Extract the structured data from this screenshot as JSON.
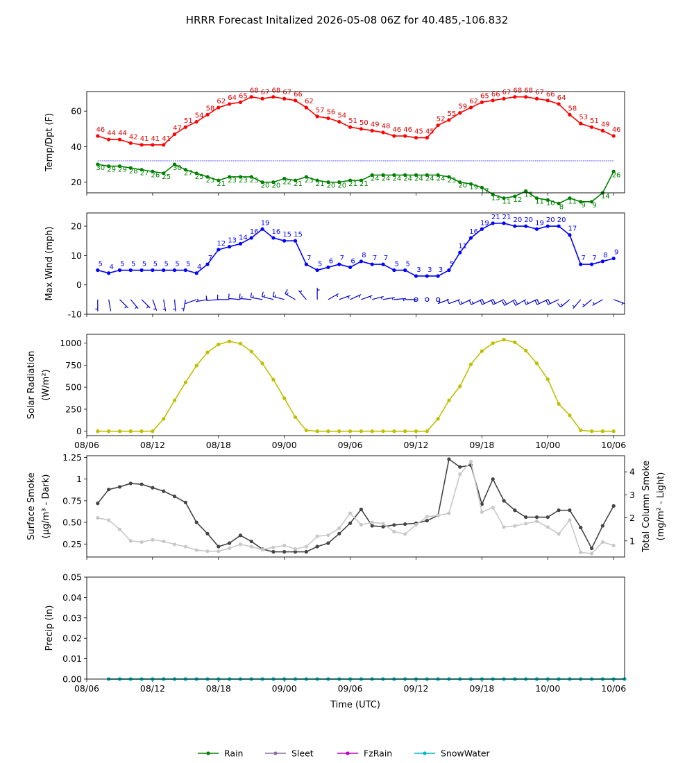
{
  "title": "HRRR Forecast Initalized 2026-05-08 06Z for 40.485,-106.832",
  "xlabel": "Time (UTC)",
  "x_tick_labels": [
    "08/06",
    "08/12",
    "08/18",
    "09/00",
    "09/06",
    "09/12",
    "09/18",
    "10/00",
    "10/06"
  ],
  "x_tick_hours": [
    0,
    6,
    12,
    18,
    24,
    30,
    36,
    42,
    48
  ],
  "x_range_hours": [
    0,
    49
  ],
  "legend": [
    {
      "name": "Rain",
      "color": "#008000"
    },
    {
      "name": "Sleet",
      "color": "#8a6fa0"
    },
    {
      "name": "FzRain",
      "color": "#c000c0"
    },
    {
      "name": "SnowWater",
      "color": "#00b8c8"
    }
  ],
  "chart_data": [
    {
      "type": "line",
      "ylabel": "Temp/Dpt (F)",
      "ylim": [
        14,
        71
      ],
      "yticks": [
        20,
        40,
        60
      ],
      "reference_line": 32,
      "hours_start": 1,
      "series": [
        {
          "key": "temp",
          "color": "#ff0000",
          "label_color": "#dd0000",
          "values": [
            46,
            44,
            44,
            42,
            41,
            41,
            41,
            47,
            51,
            54,
            58,
            62,
            64,
            65,
            68,
            67,
            68,
            67,
            66,
            62,
            57,
            56,
            54,
            51,
            50,
            49,
            48,
            46,
            46,
            45,
            45,
            52,
            55,
            59,
            62,
            65,
            66,
            67,
            68,
            68,
            67,
            66,
            64,
            58,
            53,
            51,
            49,
            46
          ]
        },
        {
          "key": "dewpoint",
          "color": "#008000",
          "label_color": "#008000",
          "values": [
            30,
            29,
            29,
            28,
            27,
            26,
            25,
            30,
            27,
            25,
            23,
            21,
            23,
            23,
            23,
            20,
            20,
            22,
            21,
            23,
            21,
            20,
            20,
            21,
            21,
            24,
            24,
            24,
            24,
            24,
            24,
            24,
            23,
            20,
            19,
            17,
            13,
            11,
            12,
            15,
            11,
            10,
            8,
            11,
            9,
            9,
            14,
            26
          ]
        }
      ]
    },
    {
      "type": "line",
      "ylabel": "Max Wind (mph)",
      "ylim": [
        -10,
        24.5
      ],
      "yticks": [
        -10,
        0,
        10,
        20
      ],
      "hours_start": 1,
      "series": [
        {
          "key": "wind",
          "color": "#0000ff",
          "values": [
            5,
            4,
            5,
            5,
            5,
            5,
            5,
            5,
            5,
            4,
            7,
            12,
            13,
            14,
            16,
            19,
            16,
            15,
            15,
            7,
            5,
            6,
            7,
            6,
            8,
            7,
            7,
            5,
            5,
            3,
            3,
            3,
            5,
            11,
            16,
            19,
            21,
            21,
            20,
            20,
            19,
            20,
            20,
            17,
            7,
            7,
            8,
            9
          ]
        }
      ],
      "barbs": {
        "y": -5,
        "directions_deg": [
          180,
          170,
          135,
          140,
          135,
          160,
          170,
          175,
          190,
          250,
          260,
          265,
          270,
          275,
          275,
          280,
          285,
          285,
          300,
          320,
          0,
          60,
          70,
          65,
          70,
          75,
          80,
          85,
          90,
          95,
          120,
          135,
          250,
          250,
          245,
          245,
          245,
          245,
          240,
          240,
          245,
          245,
          245,
          230,
          220,
          230,
          240,
          110
        ]
      }
    },
    {
      "type": "line",
      "ylabel": "Solar Radiation",
      "ylabel_unit": "(W/m²)",
      "ylim": [
        -50,
        1100
      ],
      "yticks": [
        0,
        250,
        500,
        750,
        1000
      ],
      "hours_start": 1,
      "series": [
        {
          "key": "solar",
          "color": "#bfbf00",
          "values": [
            0,
            0,
            0,
            0,
            0,
            0,
            140,
            350,
            555,
            745,
            895,
            985,
            1020,
            995,
            905,
            770,
            585,
            375,
            160,
            10,
            0,
            0,
            0,
            0,
            0,
            0,
            0,
            0,
            0,
            0,
            0,
            140,
            350,
            510,
            760,
            910,
            1000,
            1040,
            1010,
            915,
            770,
            590,
            310,
            180,
            10,
            0,
            0,
            0
          ]
        }
      ]
    },
    {
      "type": "line",
      "ylabel": "Surface Smoke",
      "ylabel_unit": "(μg/m³ - Dark)",
      "ylabel_right": "Total Column Smoke",
      "ylabel_right_unit": "(mg/m² - Light)",
      "ylim": [
        0.1,
        1.27
      ],
      "yticks": [
        0.25,
        0.5,
        0.75,
        1.0,
        1.25
      ],
      "ylim_right": [
        0.3,
        4.7
      ],
      "yticks_right": [
        1,
        2,
        3,
        4
      ],
      "hours_start": 1,
      "series": [
        {
          "key": "surface_smoke",
          "color": "#444444",
          "axis": "left",
          "values": [
            0.72,
            0.88,
            0.91,
            0.95,
            0.94,
            0.9,
            0.86,
            0.8,
            0.73,
            0.5,
            0.37,
            0.22,
            0.26,
            0.35,
            0.28,
            0.19,
            0.16,
            0.16,
            0.16,
            0.16,
            0.22,
            0.26,
            0.37,
            0.49,
            0.65,
            0.46,
            0.45,
            0.47,
            0.48,
            0.49,
            0.52,
            0.58,
            1.23,
            1.14,
            1.16,
            0.71,
            1.0,
            0.75,
            0.64,
            0.56,
            0.56,
            0.56,
            0.64,
            0.64,
            0.44,
            0.2,
            0.46,
            0.69
          ]
        },
        {
          "key": "column_smoke",
          "color": "#c8c8c8",
          "axis": "right",
          "values": [
            2.0,
            1.9,
            1.5,
            1.0,
            0.95,
            1.05,
            0.98,
            0.85,
            0.75,
            0.6,
            0.55,
            0.55,
            0.68,
            0.85,
            0.75,
            0.62,
            0.72,
            0.8,
            0.65,
            0.75,
            1.2,
            1.25,
            1.55,
            2.2,
            1.7,
            1.8,
            1.75,
            1.4,
            1.3,
            1.7,
            2.05,
            2.1,
            2.2,
            3.9,
            4.45,
            2.25,
            2.45,
            1.6,
            1.65,
            1.75,
            1.85,
            1.6,
            1.3,
            1.9,
            0.5,
            0.45,
            0.95,
            0.8
          ]
        }
      ]
    },
    {
      "type": "line",
      "ylabel": "Precip (in)",
      "ylim": [
        0,
        0.05
      ],
      "yticks": [
        0.0,
        0.01,
        0.02,
        0.03,
        0.04,
        0.05
      ],
      "ytick_labels": [
        "0.00",
        "0.01",
        "0.02",
        "0.03",
        "0.04",
        "0.05"
      ],
      "hours_start": 2,
      "series": [
        {
          "key": "rain",
          "color": "#008000",
          "values": [
            0,
            0,
            0,
            0,
            0,
            0,
            0,
            0,
            0,
            0,
            0,
            0,
            0,
            0,
            0,
            0,
            0,
            0,
            0,
            0,
            0,
            0,
            0,
            0,
            0,
            0,
            0,
            0,
            0,
            0,
            0,
            0,
            0,
            0,
            0,
            0,
            0,
            0,
            0,
            0,
            0,
            0,
            0,
            0,
            0,
            0,
            0,
            0
          ]
        },
        {
          "key": "snowwater",
          "color": "#00b8c8",
          "values": [
            0,
            0,
            0,
            0,
            0,
            0,
            0,
            0,
            0,
            0,
            0,
            0,
            0,
            0,
            0,
            0,
            0,
            0,
            0,
            0,
            0,
            0,
            0,
            0,
            0,
            0,
            0,
            0,
            0,
            0,
            0,
            0,
            0,
            0,
            0,
            0,
            0,
            0,
            0,
            0,
            0,
            0,
            0,
            0,
            0,
            0,
            0,
            0
          ]
        }
      ]
    }
  ]
}
